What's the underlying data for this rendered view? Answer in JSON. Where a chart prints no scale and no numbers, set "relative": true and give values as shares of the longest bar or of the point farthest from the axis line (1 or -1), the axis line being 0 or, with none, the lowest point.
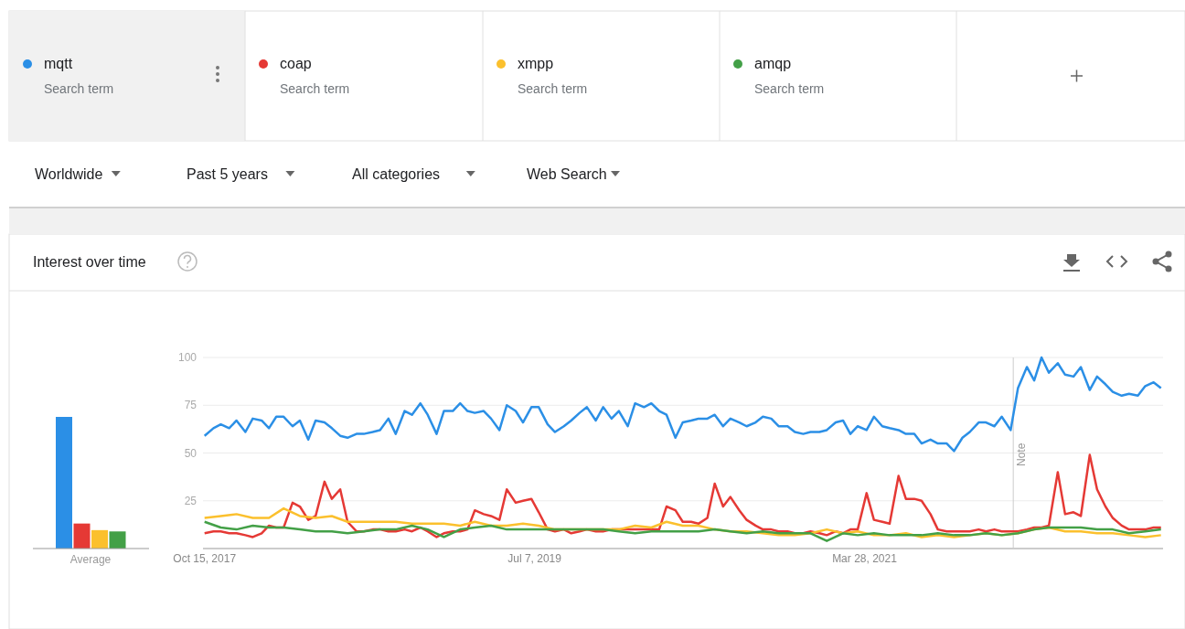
{
  "chart_data": [
    {
      "type": "line",
      "title": "Interest over time",
      "legend": "top",
      "grid": "y",
      "annotations": [
        "Search term",
        "Search term",
        "Search term",
        "Search term",
        "Worldwide",
        "Past 5 years",
        "All categories",
        "Web Search"
      ],
      "xlim": [
        "2017-10-12",
        "2022-10-19"
      ],
      "xticks": [
        {
          "value": "2017-10-15",
          "label": "Oct 15, 2017"
        },
        {
          "value": "2019-07-07",
          "label": "Jul 7, 2019"
        },
        {
          "value": "2021-03-28",
          "label": "Mar 28, 2021"
        }
      ],
      "ylim": [
        0,
        100
      ],
      "yticks": [
        25,
        50,
        75,
        100
      ],
      "ref_lines": [
        {
          "axis": "x",
          "value": "2022-01-06",
          "label": "Note",
          "color": "#cccccc"
        }
      ],
      "x": [
        "2017-10-15",
        "2017-11-01",
        "2017-11-15",
        "2017-12-01",
        "2017-12-15",
        "2018-01-01",
        "2018-01-15",
        "2018-02-01",
        "2018-02-15",
        "2018-03-01",
        "2018-03-15",
        "2018-04-01",
        "2018-04-15",
        "2018-05-01",
        "2018-05-15",
        "2018-06-01",
        "2018-06-15",
        "2018-07-01",
        "2018-07-15",
        "2018-08-01",
        "2018-08-15",
        "2018-09-01",
        "2018-09-15",
        "2018-10-01",
        "2018-10-15",
        "2018-11-01",
        "2018-11-15",
        "2018-12-01",
        "2018-12-15",
        "2019-01-01",
        "2019-01-15",
        "2019-02-01",
        "2019-02-15",
        "2019-03-01",
        "2019-03-15",
        "2019-04-01",
        "2019-04-15",
        "2019-05-01",
        "2019-05-15",
        "2019-06-01",
        "2019-06-15",
        "2019-07-01",
        "2019-07-15",
        "2019-08-01",
        "2019-08-15",
        "2019-09-01",
        "2019-09-15",
        "2019-10-01",
        "2019-10-15",
        "2019-11-01",
        "2019-11-15",
        "2019-12-01",
        "2019-12-15",
        "2020-01-01",
        "2020-01-15",
        "2020-02-01",
        "2020-02-15",
        "2020-03-01",
        "2020-03-15",
        "2020-04-01",
        "2020-04-15",
        "2020-05-01",
        "2020-05-15",
        "2020-06-01",
        "2020-06-15",
        "2020-07-01",
        "2020-07-15",
        "2020-08-01",
        "2020-08-15",
        "2020-09-01",
        "2020-09-15",
        "2020-10-01",
        "2020-10-15",
        "2020-11-01",
        "2020-11-15",
        "2020-12-01",
        "2020-12-15",
        "2021-01-01",
        "2021-01-15",
        "2021-02-01",
        "2021-02-15",
        "2021-03-01",
        "2021-03-15",
        "2021-04-01",
        "2021-04-15",
        "2021-05-01",
        "2021-05-15",
        "2021-06-01",
        "2021-06-15",
        "2021-07-01",
        "2021-07-15",
        "2021-08-01",
        "2021-08-15",
        "2021-09-01",
        "2021-09-15",
        "2021-10-01",
        "2021-10-15",
        "2021-11-01",
        "2021-11-15",
        "2021-12-01",
        "2021-12-15",
        "2022-01-01",
        "2022-01-15",
        "2022-02-01",
        "2022-02-15",
        "2022-03-01",
        "2022-03-15",
        "2022-04-01",
        "2022-04-15",
        "2022-05-01",
        "2022-05-15",
        "2022-06-01",
        "2022-06-15",
        "2022-07-01",
        "2022-07-15",
        "2022-08-01",
        "2022-08-15",
        "2022-09-01",
        "2022-09-15",
        "2022-10-01",
        "2022-10-15"
      ],
      "series": [
        {
          "name": "mqtt",
          "color": "#2b8fe6",
          "values": [
            59,
            63,
            65,
            63,
            67,
            61,
            68,
            67,
            63,
            69,
            69,
            64,
            67,
            57,
            67,
            66,
            63,
            59,
            58,
            60,
            60,
            61,
            62,
            68,
            60,
            72,
            70,
            76,
            70,
            60,
            72,
            72,
            76,
            72,
            71,
            72,
            68,
            62,
            75,
            72,
            66,
            74,
            74,
            65,
            61,
            64,
            67,
            71,
            74,
            67,
            74,
            68,
            72,
            64,
            76,
            74,
            76,
            72,
            70,
            58,
            66,
            67,
            68,
            68,
            70,
            64,
            68,
            66,
            64,
            66,
            69,
            68,
            64,
            64,
            61,
            60,
            61,
            61,
            62,
            66,
            67,
            60,
            64,
            62,
            69,
            64,
            63,
            62,
            60,
            60,
            55,
            57,
            55,
            55,
            51,
            58,
            61,
            66,
            66,
            64,
            69,
            62,
            84,
            95,
            88,
            100,
            92,
            97,
            91,
            90,
            95,
            83,
            90,
            86,
            82,
            80,
            81,
            80,
            85,
            87,
            84
          ]
        },
        {
          "name": "coap",
          "color": "#e53935",
          "values": [
            8,
            9,
            9,
            8,
            8,
            7,
            6,
            8,
            12,
            11,
            11,
            24,
            22,
            15,
            17,
            35,
            26,
            31,
            14,
            9,
            9,
            10,
            10,
            9,
            9,
            10,
            9,
            11,
            9,
            6,
            8,
            9,
            9,
            10,
            20,
            18,
            17,
            15,
            31,
            24,
            25,
            26,
            19,
            10,
            9,
            10,
            8,
            9,
            10,
            9,
            9,
            10,
            10,
            10,
            10,
            10,
            10,
            10,
            22,
            20,
            14,
            14,
            13,
            16,
            34,
            22,
            27,
            20,
            15,
            12,
            10,
            10,
            9,
            9,
            8,
            8,
            9,
            8,
            7,
            9,
            8,
            10,
            10,
            29,
            15,
            14,
            13,
            38,
            26,
            26,
            25,
            18,
            10,
            9,
            9,
            9,
            9,
            10,
            9,
            10,
            9,
            9,
            9,
            10,
            11,
            11,
            12,
            40,
            18,
            19,
            17,
            49,
            31,
            22,
            16,
            12,
            10,
            10,
            10,
            11,
            11
          ]
        },
        {
          "name": "xmpp",
          "color": "#fbc02d",
          "x": [
            "2017-10-15",
            "2017-11-15",
            "2017-12-15",
            "2018-01-15",
            "2018-02-15",
            "2018-03-15",
            "2018-04-15",
            "2018-05-15",
            "2018-06-15",
            "2018-07-15",
            "2018-08-15",
            "2018-09-15",
            "2018-10-15",
            "2018-11-15",
            "2018-12-15",
            "2019-01-15",
            "2019-02-15",
            "2019-03-15",
            "2019-04-15",
            "2019-05-15",
            "2019-06-15",
            "2019-07-15",
            "2019-08-15",
            "2019-09-15",
            "2019-10-15",
            "2019-11-15",
            "2019-12-15",
            "2020-01-15",
            "2020-02-15",
            "2020-03-15",
            "2020-04-15",
            "2020-05-15",
            "2020-06-15",
            "2020-07-15",
            "2020-08-15",
            "2020-09-15",
            "2020-10-15",
            "2020-11-15",
            "2020-12-15",
            "2021-01-15",
            "2021-02-15",
            "2021-03-15",
            "2021-04-15",
            "2021-05-15",
            "2021-06-15",
            "2021-07-15",
            "2021-08-15",
            "2021-09-15",
            "2021-10-15",
            "2021-11-15",
            "2021-12-15",
            "2022-01-15",
            "2022-02-15",
            "2022-03-15",
            "2022-04-15",
            "2022-05-15",
            "2022-06-15",
            "2022-07-15",
            "2022-08-15",
            "2022-09-15",
            "2022-10-15"
          ],
          "values": [
            16,
            17,
            18,
            16,
            16,
            21,
            17,
            16,
            17,
            14,
            14,
            14,
            14,
            13,
            13,
            13,
            12,
            14,
            12,
            12,
            13,
            12,
            10,
            10,
            10,
            10,
            10,
            12,
            11,
            14,
            12,
            12,
            10,
            9,
            9,
            8,
            7,
            7,
            8,
            10,
            8,
            9,
            7,
            7,
            8,
            6,
            7,
            6,
            7,
            8,
            7,
            8,
            10,
            11,
            9,
            9,
            8,
            8,
            7,
            6,
            7
          ]
        },
        {
          "name": "amqp",
          "color": "#43a047",
          "x": [
            "2017-10-15",
            "2017-11-15",
            "2017-12-15",
            "2018-01-15",
            "2018-02-15",
            "2018-03-15",
            "2018-04-15",
            "2018-05-15",
            "2018-06-15",
            "2018-07-15",
            "2018-08-15",
            "2018-09-15",
            "2018-10-15",
            "2018-11-15",
            "2018-12-15",
            "2019-01-15",
            "2019-02-15",
            "2019-03-15",
            "2019-04-15",
            "2019-05-15",
            "2019-06-15",
            "2019-07-15",
            "2019-08-15",
            "2019-09-15",
            "2019-10-15",
            "2019-11-15",
            "2019-12-15",
            "2020-01-15",
            "2020-02-15",
            "2020-03-15",
            "2020-04-15",
            "2020-05-15",
            "2020-06-15",
            "2020-07-15",
            "2020-08-15",
            "2020-09-15",
            "2020-10-15",
            "2020-11-15",
            "2020-12-15",
            "2021-01-15",
            "2021-02-15",
            "2021-03-15",
            "2021-04-15",
            "2021-05-15",
            "2021-06-15",
            "2021-07-15",
            "2021-08-15",
            "2021-09-15",
            "2021-10-15",
            "2021-11-15",
            "2021-12-15",
            "2022-01-15",
            "2022-02-15",
            "2022-03-15",
            "2022-04-15",
            "2022-05-15",
            "2022-06-15",
            "2022-07-15",
            "2022-08-15",
            "2022-09-15",
            "2022-10-15"
          ],
          "values": [
            14,
            11,
            10,
            12,
            11,
            11,
            10,
            9,
            9,
            8,
            9,
            10,
            10,
            12,
            10,
            6,
            10,
            11,
            12,
            10,
            10,
            10,
            10,
            10,
            10,
            10,
            9,
            8,
            9,
            9,
            9,
            9,
            10,
            9,
            8,
            9,
            8,
            8,
            8,
            4,
            8,
            7,
            8,
            7,
            7,
            7,
            8,
            7,
            7,
            8,
            7,
            8,
            10,
            11,
            11,
            11,
            10,
            10,
            8,
            9,
            10
          ]
        }
      ]
    },
    {
      "type": "bar",
      "relative": true,
      "categories": [
        "Average"
      ],
      "series": [
        {
          "color": "#2b8fe6",
          "values": [
            1
          ]
        },
        {
          "color": "#e53935",
          "values": [
            0.19
          ]
        },
        {
          "color": "#fbc02d",
          "values": [
            0.14
          ]
        },
        {
          "color": "#43a047",
          "values": [
            0.13
          ]
        }
      ]
    }
  ]
}
